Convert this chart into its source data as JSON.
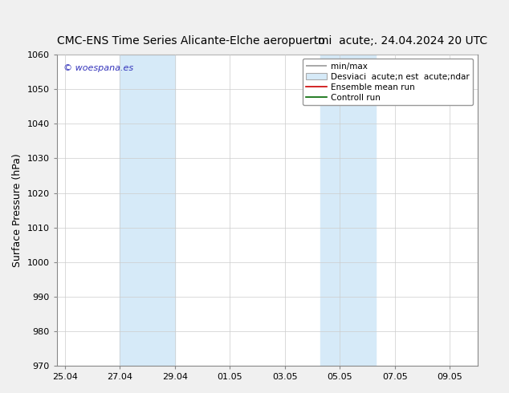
{
  "title_left": "CMC-ENS Time Series Alicante-Elche aeropuerto",
  "title_right": "mi  acute;. 24.04.2024 20 UTC",
  "ylabel": "Surface Pressure (hPa)",
  "ylim": [
    970,
    1060
  ],
  "yticks": [
    970,
    980,
    990,
    1000,
    1010,
    1020,
    1030,
    1040,
    1050,
    1060
  ],
  "xtick_labels": [
    "25.04",
    "27.04",
    "29.04",
    "01.05",
    "03.05",
    "05.05",
    "07.05",
    "09.05"
  ],
  "xtick_positions": [
    0,
    2,
    4,
    6,
    8,
    10,
    12,
    14
  ],
  "xlim": [
    -0.3,
    15.0
  ],
  "shaded_regions": [
    {
      "x_start": 2,
      "x_end": 4,
      "color": "#d6eaf8"
    },
    {
      "x_start": 9.3,
      "x_end": 11.3,
      "color": "#d6eaf8"
    }
  ],
  "watermark": "© woespana.es",
  "watermark_color": "#3333bb",
  "background_color": "#f0f0f0",
  "plot_bg_color": "#ffffff",
  "grid_color": "#cccccc",
  "font_size_title": 10,
  "font_size_labels": 9,
  "font_size_ticks": 8,
  "font_size_legend": 7.5,
  "font_size_watermark": 8
}
